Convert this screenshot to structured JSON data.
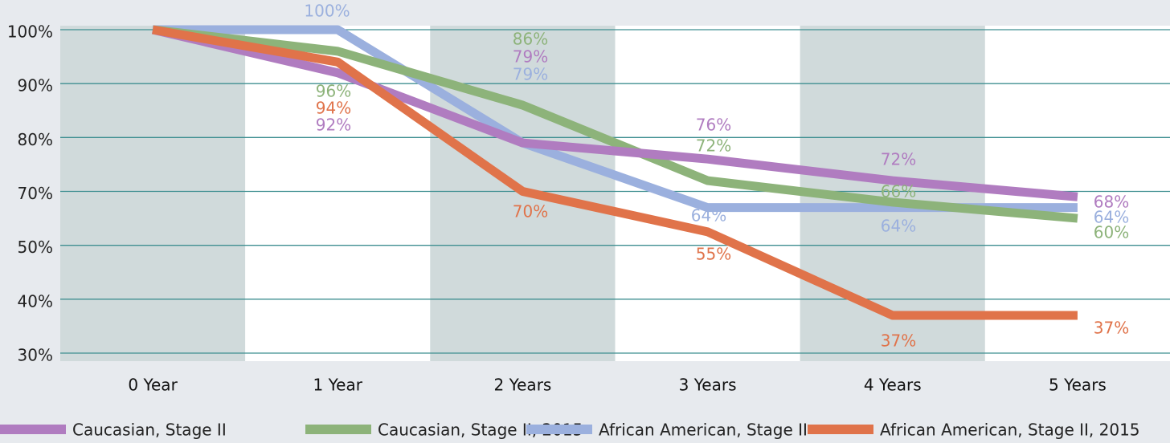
{
  "chart_data": {
    "type": "line",
    "categories": [
      "0 Year",
      "1 Year",
      "2 Years",
      "3 Years",
      "4 Years",
      "5 Years"
    ],
    "yticks": [
      {
        "value": 100,
        "label": "100%"
      },
      {
        "value": 90,
        "label": "90%"
      },
      {
        "value": 80,
        "label": "80%"
      },
      {
        "value": 70,
        "label": "70%"
      },
      {
        "value": 50,
        "label": "50%"
      },
      {
        "value": 40,
        "label": "40%"
      },
      {
        "value": 30,
        "label": "30%"
      }
    ],
    "grid": true,
    "legend": "bottom",
    "series": [
      {
        "name": "Caucasian, Stage II",
        "color": "#b07cc0",
        "values": [
          100,
          92,
          79,
          76,
          72,
          68
        ],
        "value_labels": [
          null,
          "92%",
          "79%",
          "76%",
          "72%",
          "68%"
        ]
      },
      {
        "name": "Caucasian, Stage II, 2015",
        "color": "#8db37a",
        "values": [
          100,
          96,
          86,
          72,
          66,
          60
        ],
        "value_labels": [
          null,
          "96%",
          "86%",
          "72%",
          "66%",
          "60%"
        ]
      },
      {
        "name": "African American, Stage II",
        "color": "#9bb0de",
        "values": [
          100,
          100,
          79,
          64,
          64,
          64
        ],
        "value_labels": [
          null,
          "100%",
          "79%",
          "64%",
          "64%",
          "64%"
        ]
      },
      {
        "name": "African American, Stage II, 2015",
        "color": "#e0734a",
        "values": [
          100,
          94,
          70,
          55,
          37,
          37
        ],
        "value_labels": [
          null,
          "94%",
          "70%",
          "55%",
          "37%",
          "37%"
        ]
      }
    ]
  }
}
